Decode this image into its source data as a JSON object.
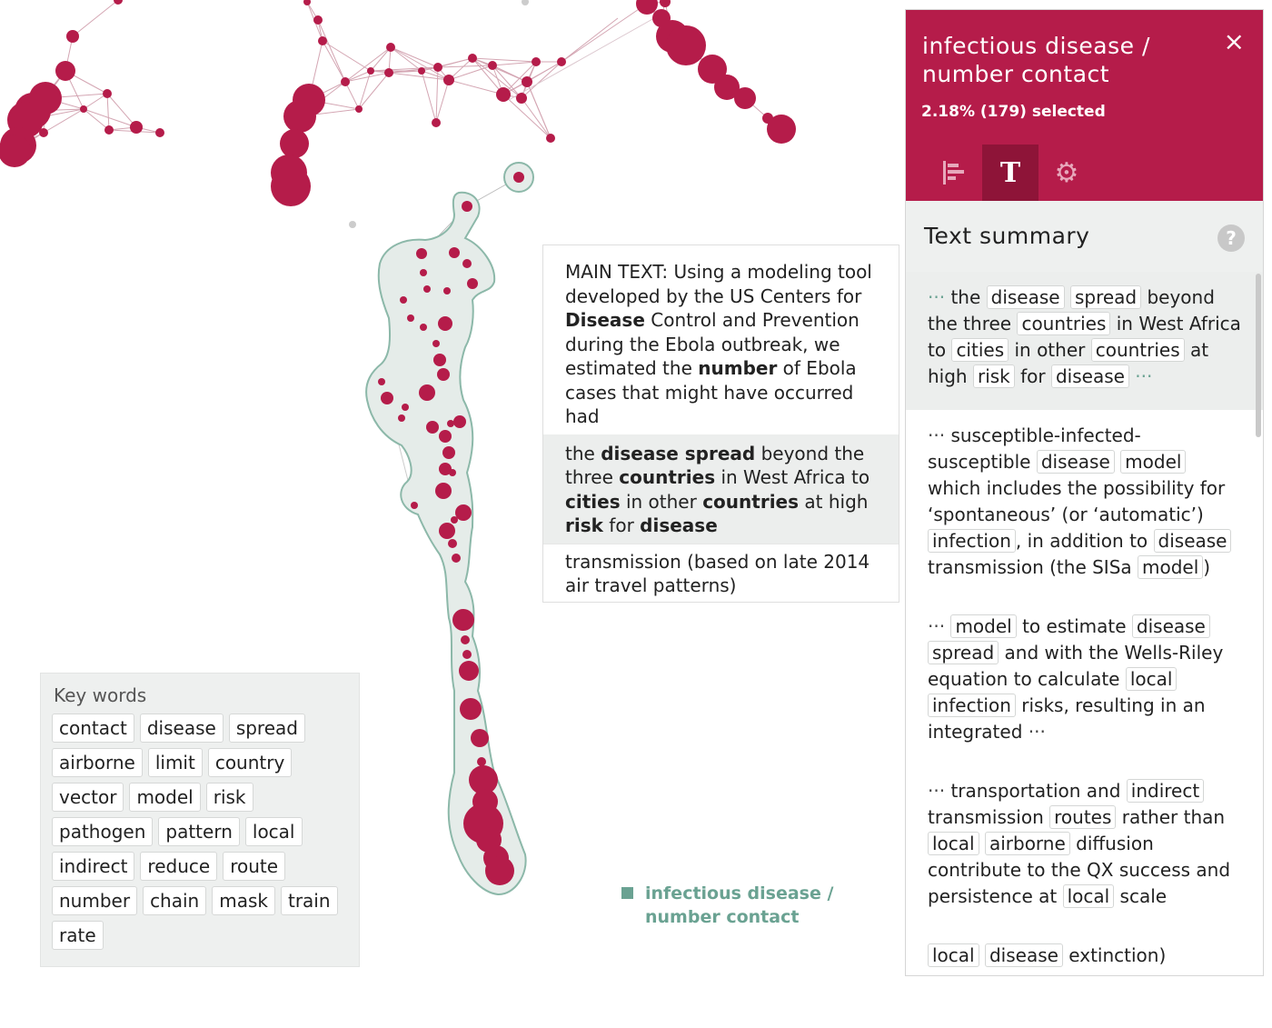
{
  "keywords": {
    "title": "Key words",
    "items": [
      "contact",
      "disease",
      "spread",
      "airborne",
      "limit",
      "country",
      "vector",
      "model",
      "risk",
      "pathogen",
      "pattern",
      "local",
      "indirect",
      "reduce",
      "route",
      "number",
      "chain",
      "mask",
      "train",
      "rate"
    ]
  },
  "tooltip": {
    "main": [
      {
        "t": "MAIN TEXT: Using a modeling tool developed by the US Centers for ",
        "b": false
      },
      {
        "t": "Disease",
        "b": true
      },
      {
        "t": " Control and Prevention during the Ebola outbreak, we estimated the ",
        "b": false
      },
      {
        "t": "number",
        "b": true
      },
      {
        "t": " of Ebola cases that might have occurred had",
        "b": false
      }
    ],
    "highlight": [
      {
        "t": "the ",
        "b": false
      },
      {
        "t": "disease spread",
        "b": true
      },
      {
        "t": " beyond the three ",
        "b": false
      },
      {
        "t": "countries",
        "b": true
      },
      {
        "t": " in West Africa to ",
        "b": false
      },
      {
        "t": "cities",
        "b": true
      },
      {
        "t": " in other ",
        "b": false
      },
      {
        "t": "countries",
        "b": true
      },
      {
        "t": " at high ",
        "b": false
      },
      {
        "t": "risk",
        "b": true
      },
      {
        "t": " for ",
        "b": false
      },
      {
        "t": "disease",
        "b": true
      }
    ],
    "last": "transmission (based on late 2014 air travel patterns)"
  },
  "legend": {
    "label": "infectious disease / number contact",
    "color": "#6aa292"
  },
  "panel": {
    "title": "infectious disease / number contact",
    "selected": "2.18% (179) selected",
    "close_icon": "×",
    "tabs": [
      {
        "name": "bar-chart-icon",
        "glyph": "bars",
        "active": false
      },
      {
        "name": "text-icon",
        "glyph": "T",
        "active": true
      },
      {
        "name": "gear-icon",
        "glyph": "⚙",
        "active": false
      }
    ],
    "summary_title": "Text summary",
    "help_icon": "?",
    "items": [
      {
        "hl": true,
        "parts": [
          {
            "d": "··· "
          },
          {
            "t": "the "
          },
          {
            "c": "disease"
          },
          {
            "t": " "
          },
          {
            "c": "spread"
          },
          {
            "t": " beyond the three "
          },
          {
            "c": "countries"
          },
          {
            "t": " in West Africa to "
          },
          {
            "c": "cities"
          },
          {
            "t": " in other "
          },
          {
            "c": "countries"
          },
          {
            "t": " at high "
          },
          {
            "c": "risk"
          },
          {
            "t": " for "
          },
          {
            "c": "disease"
          },
          {
            "d": " ···"
          }
        ]
      },
      {
        "hl": false,
        "parts": [
          {
            "dd": "··· "
          },
          {
            "t": "susceptible-infected-susceptible "
          },
          {
            "c": "disease"
          },
          {
            "t": " "
          },
          {
            "c": "model"
          },
          {
            "t": " which includes the possibility for ‘spontaneous’ (or ‘automatic’) "
          },
          {
            "c": "infection"
          },
          {
            "t": ", in addition to "
          },
          {
            "c": "disease"
          },
          {
            "t": " transmission (the SISa "
          },
          {
            "c": "model"
          },
          {
            "t": ")"
          }
        ]
      },
      {
        "hl": false,
        "parts": [
          {
            "dd": "··· "
          },
          {
            "c": "model"
          },
          {
            "t": " to estimate "
          },
          {
            "c": "disease"
          },
          {
            "t": " "
          },
          {
            "c": "spread"
          },
          {
            "t": " and with the Wells-Riley equation to calculate "
          },
          {
            "c": "local"
          },
          {
            "t": " "
          },
          {
            "c": "infection"
          },
          {
            "t": " risks, resulting in an integrated "
          },
          {
            "dd": "···"
          }
        ]
      },
      {
        "hl": false,
        "parts": [
          {
            "dd": "··· "
          },
          {
            "t": "transportation and "
          },
          {
            "c": "indirect"
          },
          {
            "t": " transmission "
          },
          {
            "c": "routes"
          },
          {
            "t": " rather than "
          },
          {
            "c": "local"
          },
          {
            "t": " "
          },
          {
            "c": "airborne"
          },
          {
            "t": " diffusion contribute to the QX success and persistence at "
          },
          {
            "c": "local"
          },
          {
            "t": " scale"
          }
        ]
      },
      {
        "hl": false,
        "parts": [
          {
            "t": "  "
          },
          {
            "c": "local"
          },
          {
            "t": " "
          },
          {
            "c": "disease"
          },
          {
            "t": " extinction)"
          }
        ]
      }
    ]
  },
  "colors": {
    "accent": "#b51c4a",
    "node": "#b51c4a",
    "edge": "#d4a6b3",
    "cluster_fill": "#e5ece9",
    "cluster_stroke": "#8cb8a9"
  }
}
